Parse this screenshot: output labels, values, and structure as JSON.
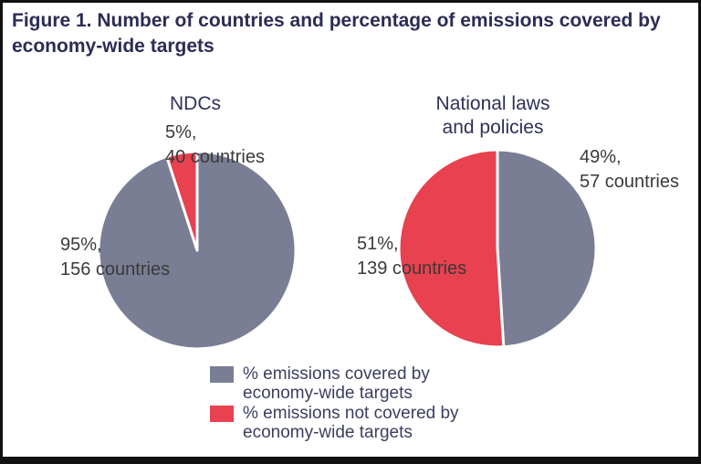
{
  "figure": {
    "title": "Figure 1. Number of countries and percentage of emissions covered by economy-wide targets"
  },
  "chart_data": {
    "type": "pie",
    "title": "Figure 1. Number of countries and percentage of emissions covered by economy-wide targets",
    "colors": {
      "covered": "#7a7e94",
      "not_covered": "#e8414f",
      "title_navy": "#2a2d55",
      "label_dark": "#3a3a3a"
    },
    "pies": [
      {
        "title": "NDCs",
        "slices": [
          {
            "name": "covered",
            "percent": 95,
            "countries": 156,
            "color": "#7a7e94",
            "label": "95%,\n156 countries"
          },
          {
            "name": "not-covered",
            "percent": 5,
            "countries": 40,
            "color": "#e8414f",
            "label": "5%,\n40 countries"
          }
        ]
      },
      {
        "title": "National laws\nand policies",
        "slices": [
          {
            "name": "covered",
            "percent": 49,
            "countries": 57,
            "color": "#7a7e94",
            "label": "49%,\n57 countries"
          },
          {
            "name": "not-covered",
            "percent": 51,
            "countries": 139,
            "color": "#e8414f",
            "label": "51%,\n139 countries"
          }
        ]
      }
    ],
    "legend": [
      {
        "color": "#7a7e94",
        "label": "% emissions covered by\neconomy-wide targets"
      },
      {
        "color": "#e8414f",
        "label": "% emissions not covered by\neconomy-wide targets"
      }
    ],
    "legend_position": "bottom-center"
  }
}
